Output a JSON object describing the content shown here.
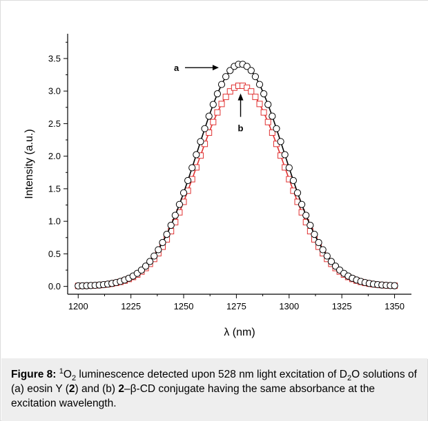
{
  "chart_data": {
    "type": "scatter",
    "xlabel": "λ (nm)",
    "ylabel": "Intensity (a.u.)",
    "xlim": [
      1195,
      1358
    ],
    "ylim": [
      -0.12,
      3.88
    ],
    "xticks": [
      1200,
      1225,
      1250,
      1275,
      1300,
      1325,
      1350
    ],
    "yticks": [
      "0.0",
      "0.5",
      "1.0",
      "1.5",
      "2.0",
      "2.5",
      "3.0",
      "3.5"
    ],
    "grid": false,
    "series": [
      {
        "name": "a",
        "marker": "circle",
        "color": "#000000",
        "peak_x": 1277,
        "peak_y": 3.41,
        "sigma": 20.5,
        "baseline": 0.005,
        "x_start": 1200,
        "x_end": 1350,
        "step": 2
      },
      {
        "name": "b",
        "marker": "square",
        "color": "#e03030",
        "peak_x": 1277,
        "peak_y": 3.08,
        "sigma": 20.5,
        "baseline": 0.005,
        "x_start": 1200,
        "x_end": 1350,
        "step": 2
      }
    ],
    "annotations": [
      {
        "label": "a",
        "target_series": "a",
        "arrow": "right"
      },
      {
        "label": "b",
        "target_series": "b",
        "arrow": "up"
      }
    ]
  },
  "caption": {
    "label": "Figure 8:",
    "sup": "1",
    "o": "O",
    "sub": "2",
    "text1": " luminescence detected upon 528 nm light excitation of D",
    "sub2": "2",
    "text2": "O solutions of (a) eosin Y (",
    "bold1": "2",
    "text3": ") and (b) ",
    "bold2": "2",
    "text4": "–β-CD conjugate having the same absorbance at the excitation wavelength."
  },
  "colors": {
    "series_a": "#000000",
    "series_b": "#e03030",
    "caption_bg": "#eeeeee"
  }
}
